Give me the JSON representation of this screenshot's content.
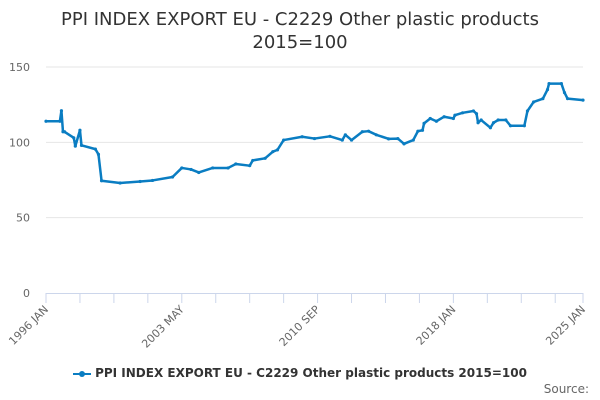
{
  "chart_data": {
    "type": "line",
    "title": "PPI INDEX EXPORT EU - C2229 Other plastic products",
    "subtitle": "2015=100",
    "xlabel": "",
    "ylabel": "",
    "ylim": [
      0,
      150
    ],
    "yticks": [
      0,
      50,
      100,
      150
    ],
    "xticklabels": [
      "1996 JAN",
      "2003 MAY",
      "2010 SEP",
      "2018 JAN",
      "2025 JAN"
    ],
    "grid": true,
    "legend": "bottom",
    "color": "#0a7dc2",
    "series": [
      {
        "name": "PPI INDEX EXPORT EU - C2229 Other plastic products 2015=100",
        "x": [
          "1996-01",
          "1996-10",
          "1996-11",
          "1996-12",
          "1997-01",
          "1997-07",
          "1997-08",
          "1997-11",
          "1997-12",
          "1998-09",
          "1998-11",
          "1999-01",
          "2000-01",
          "2001-02",
          "2001-10",
          "2002-11",
          "2003-05",
          "2003-11",
          "2004-04",
          "2005-01",
          "2005-11",
          "2006-04",
          "2007-01",
          "2007-03",
          "2007-11",
          "2008-04",
          "2008-07",
          "2008-11",
          "2009-11",
          "2010-07",
          "2011-05",
          "2012-01",
          "2012-03",
          "2012-07",
          "2013-02",
          "2013-06",
          "2013-11",
          "2014-07",
          "2015-01",
          "2015-05",
          "2015-11",
          "2016-02",
          "2016-05",
          "2016-06",
          "2016-10",
          "2017-02",
          "2017-07",
          "2018-01",
          "2018-02",
          "2018-07",
          "2019-02",
          "2019-04",
          "2019-05",
          "2019-07",
          "2020-01",
          "2020-03",
          "2020-06",
          "2020-11",
          "2021-02",
          "2021-11",
          "2022-01",
          "2022-05",
          "2022-11",
          "2023-02",
          "2023-03",
          "2023-11",
          "2024-01",
          "2024-03",
          "2025-01"
        ],
        "values": [
          114,
          114,
          121,
          107,
          107,
          103,
          97.5,
          108,
          98,
          95.5,
          92,
          74.5,
          73,
          74,
          74.7,
          77,
          83,
          82,
          80,
          83,
          83,
          85.6,
          84.5,
          88,
          89.4,
          93.8,
          95,
          101.5,
          103.7,
          102.5,
          104,
          101.5,
          105,
          101.5,
          107,
          107.4,
          105,
          102.3,
          102.5,
          99,
          101.5,
          107.4,
          108,
          112.6,
          115.8,
          114,
          117,
          115.8,
          118,
          119.6,
          120.8,
          119,
          113,
          114.8,
          109.7,
          113,
          114.8,
          114.8,
          111,
          111,
          120.8,
          126.8,
          129,
          135,
          139,
          139,
          133,
          129,
          128
        ]
      }
    ]
  },
  "source_label": "Source:"
}
